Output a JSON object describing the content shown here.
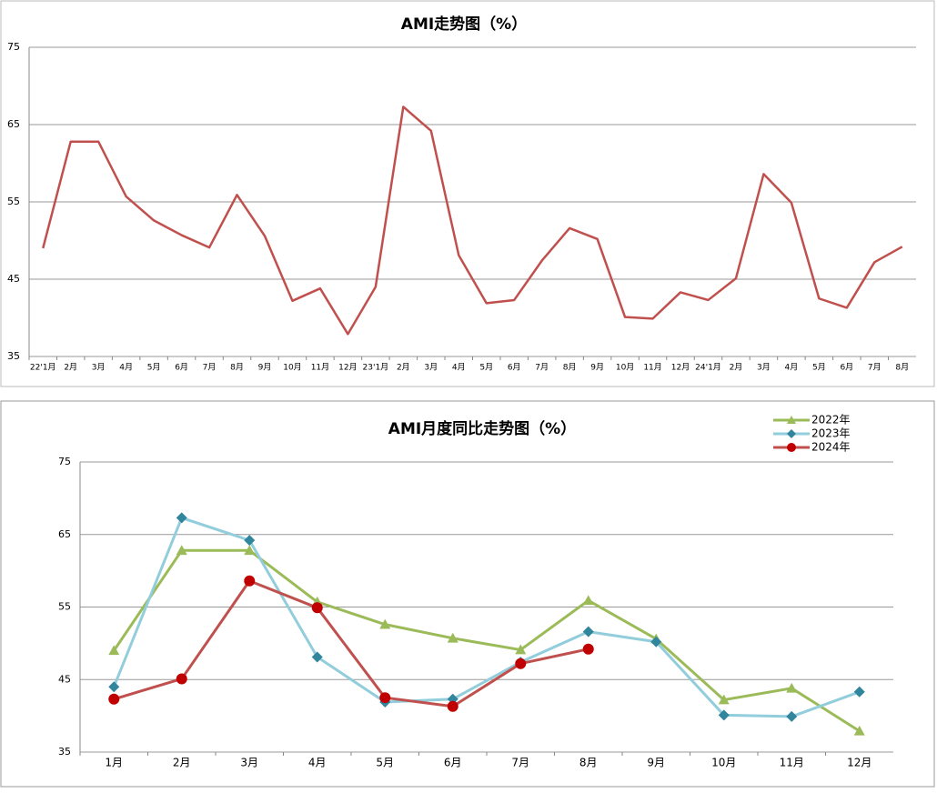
{
  "chart_data": [
    {
      "type": "line",
      "title": "AMI走势图（%）",
      "categories": [
        "22'1月",
        "2月",
        "3月",
        "4月",
        "5月",
        "6月",
        "7月",
        "8月",
        "9月",
        "10月",
        "11月",
        "12月",
        "23'1月",
        "2月",
        "3月",
        "4月",
        "5月",
        "6月",
        "7月",
        "8月",
        "9月",
        "10月",
        "11月",
        "12月",
        "24'1月",
        "2月",
        "3月",
        "4月",
        "5月",
        "6月",
        "7月",
        "8月"
      ],
      "series": [
        {
          "name": "AMI",
          "color": "#c0504d",
          "marker": "none",
          "values": [
            49,
            62.8,
            62.8,
            55.7,
            52.6,
            50.7,
            49.1,
            55.9,
            50.6,
            42.2,
            43.8,
            37.9,
            44,
            67.3,
            64.2,
            48.1,
            41.9,
            42.3,
            47.4,
            51.6,
            50.2,
            40.1,
            39.9,
            43.3,
            42.3,
            45.1,
            58.6,
            54.9,
            42.5,
            41.3,
            47.2,
            49.2
          ]
        }
      ],
      "ylim": [
        35,
        75
      ],
      "yticks": [
        35,
        45,
        55,
        65,
        75
      ],
      "grid": true,
      "legend": false
    },
    {
      "type": "line",
      "title": "AMI月度同比走势图（%）",
      "categories": [
        "1月",
        "2月",
        "3月",
        "4月",
        "5月",
        "6月",
        "7月",
        "8月",
        "9月",
        "10月",
        "11月",
        "12月"
      ],
      "series": [
        {
          "name": "2022年",
          "color": "#9bbb59",
          "marker": "triangle",
          "marker_color": "#9bbb59",
          "values": [
            49,
            62.8,
            62.8,
            55.7,
            52.6,
            50.7,
            49.1,
            55.9,
            50.6,
            42.2,
            43.8,
            37.9
          ]
        },
        {
          "name": "2023年",
          "color": "#92cddc",
          "marker": "diamond",
          "marker_color": "#31859c",
          "values": [
            44,
            67.3,
            64.2,
            48.1,
            41.9,
            42.3,
            47.4,
            51.6,
            50.2,
            40.1,
            39.9,
            43.3
          ]
        },
        {
          "name": "2024年",
          "color": "#c0504d",
          "marker": "circle",
          "marker_color": "#c00000",
          "values": [
            42.3,
            45.1,
            58.6,
            54.9,
            42.5,
            41.3,
            47.2,
            49.2,
            null,
            null,
            null,
            null
          ]
        }
      ],
      "ylim": [
        35,
        75
      ],
      "yticks": [
        35,
        45,
        55,
        65,
        75
      ],
      "grid": true,
      "legend": "top-right"
    }
  ]
}
